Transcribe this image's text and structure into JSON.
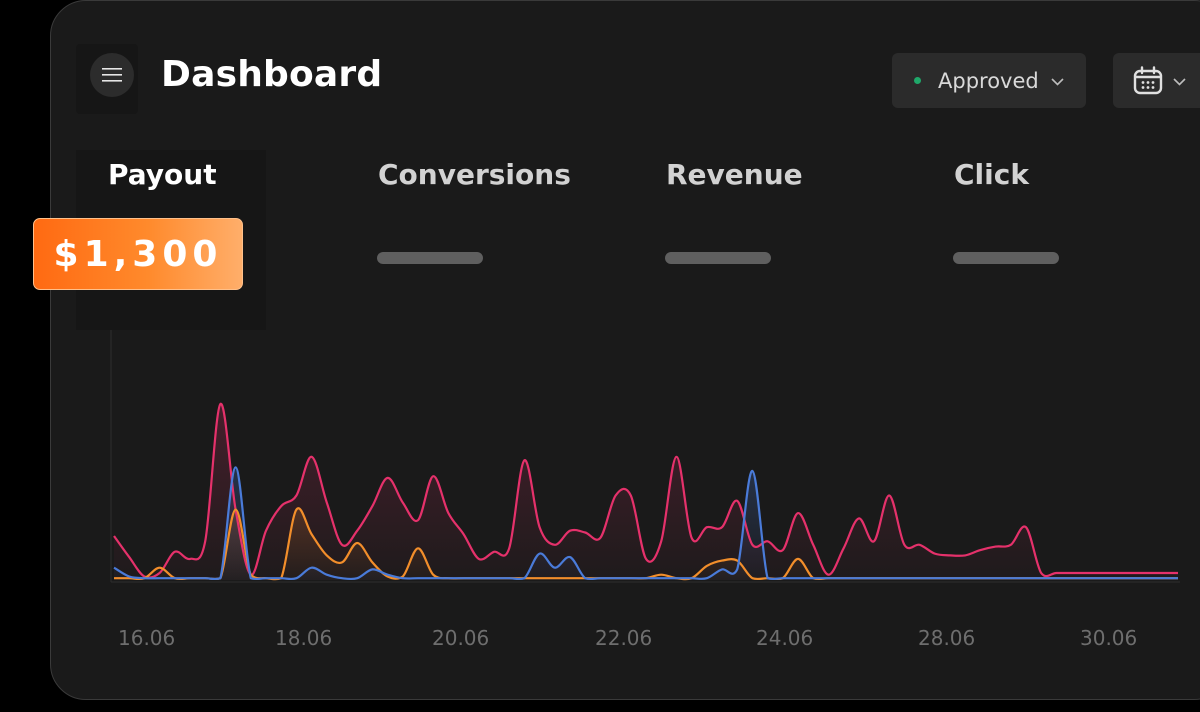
{
  "header": {
    "title": "Dashboard",
    "menu_icon": "hamburger-menu-icon",
    "status_filter": {
      "label": "Approved",
      "dot_color": "#1fa86a",
      "chevron_icon": "chevron-down-icon"
    },
    "date_picker": {
      "icon": "calendar-icon",
      "chevron_icon": "chevron-down-icon"
    }
  },
  "metrics": {
    "tabs": [
      {
        "label": "Payout",
        "value": "$1,300",
        "active": true
      },
      {
        "label": "Conversions",
        "active": false
      },
      {
        "label": "Revenue",
        "active": false
      },
      {
        "label": "Click",
        "active": false
      }
    ],
    "badge_gradient": [
      "#ff6a12",
      "#ffae6a"
    ]
  },
  "chart_data": {
    "type": "line",
    "title": "",
    "xlabel": "",
    "ylabel": "",
    "x_ticks": [
      "16.06",
      "18.06",
      "20.06",
      "22.06",
      "24.06",
      "28.06",
      "30.06"
    ],
    "x": [
      0,
      1,
      2,
      3,
      4,
      5,
      6,
      7,
      8,
      9,
      10,
      11,
      12,
      13,
      14,
      15,
      16,
      17,
      18,
      19,
      20,
      21,
      22,
      23,
      24,
      25,
      26,
      27,
      28,
      29,
      30,
      31,
      32,
      33,
      34,
      35,
      36,
      37,
      38,
      39,
      40,
      41,
      42,
      43,
      44,
      45,
      46,
      47,
      48,
      49,
      50,
      51,
      52,
      53,
      54,
      55,
      56,
      57,
      58,
      59,
      60,
      61,
      62,
      63,
      64,
      65,
      66,
      67,
      68,
      69,
      70
    ],
    "ylim": [
      0,
      100
    ],
    "grid": false,
    "legend": "none",
    "series": [
      {
        "color": "#e5316b",
        "values": [
          25,
          13,
          2,
          4,
          16,
          12,
          22,
          100,
          40,
          3,
          28,
          42,
          48,
          70,
          44,
          20,
          28,
          42,
          58,
          44,
          34,
          59,
          38,
          26,
          12,
          16,
          18,
          68,
          30,
          20,
          28,
          27,
          24,
          48,
          48,
          12,
          22,
          70,
          24,
          30,
          30,
          45,
          20,
          22,
          17,
          38,
          20,
          3,
          18,
          35,
          22,
          48,
          20,
          20,
          15,
          14,
          14,
          17,
          19,
          20,
          30,
          4,
          4,
          4,
          4,
          4,
          4,
          4,
          4,
          4,
          4
        ]
      },
      {
        "color": "#f28e2b",
        "values": [
          1,
          1,
          1,
          7,
          1,
          1,
          1,
          1,
          40,
          3,
          1,
          1,
          40,
          26,
          14,
          10,
          21,
          10,
          2,
          2,
          18,
          3,
          1,
          1,
          1,
          1,
          1,
          1,
          1,
          1,
          1,
          1,
          1,
          1,
          1,
          1,
          3,
          1,
          1,
          8,
          11,
          11,
          1,
          1,
          1,
          12,
          1,
          1,
          1,
          1,
          1,
          1,
          1,
          1,
          1,
          1,
          1,
          1,
          1,
          1,
          1,
          1,
          1,
          1,
          1,
          1,
          1,
          1,
          1,
          1,
          1
        ]
      },
      {
        "color": "#4a7bd9",
        "values": [
          7,
          2,
          1,
          1,
          1,
          1,
          1,
          1,
          64,
          1,
          1,
          1,
          1,
          7,
          3,
          1,
          1,
          6,
          3,
          1,
          1,
          1,
          1,
          1,
          1,
          1,
          1,
          1,
          15,
          7,
          13,
          1,
          1,
          1,
          1,
          1,
          1,
          1,
          1,
          1,
          6,
          6,
          62,
          1,
          1,
          1,
          1,
          1,
          1,
          1,
          1,
          1,
          1,
          1,
          1,
          1,
          1,
          1,
          1,
          1,
          1,
          1,
          1,
          1,
          1,
          1,
          1,
          1,
          1,
          1,
          1
        ]
      }
    ]
  }
}
